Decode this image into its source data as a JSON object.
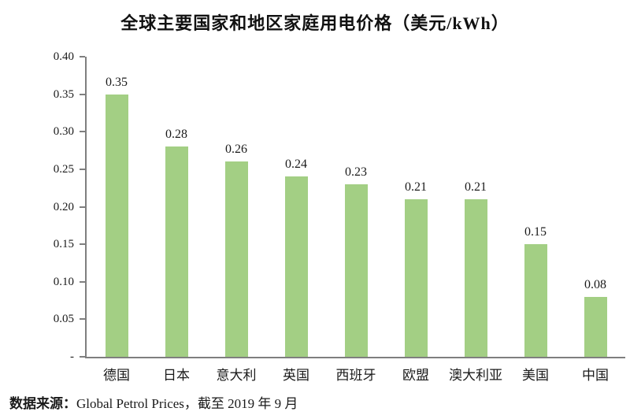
{
  "title": "全球主要国家和地区家庭用电价格（美元/kWh）",
  "source": {
    "label": "数据来源：",
    "text": "Global Petrol Prices，截至 2019 年 9 月"
  },
  "chart_data": {
    "type": "bar",
    "title": "全球主要国家和地区家庭用电价格（美元/kWh）",
    "categories": [
      "德国",
      "日本",
      "意大利",
      "英国",
      "西班牙",
      "欧盟",
      "澳大利亚",
      "美国",
      "中国"
    ],
    "values": [
      0.35,
      0.28,
      0.26,
      0.24,
      0.23,
      0.21,
      0.21,
      0.15,
      0.08
    ],
    "value_labels": [
      "0.35",
      "0.28",
      "0.26",
      "0.24",
      "0.23",
      "0.21",
      "0.21",
      "0.15",
      "0.08"
    ],
    "xlabel": "",
    "ylabel": "",
    "ylim": [
      0,
      0.4
    ],
    "yticks": [
      0.4,
      0.35,
      0.3,
      0.25,
      0.2,
      0.15,
      0.1,
      0.05,
      0
    ],
    "ytick_labels": [
      "0.40",
      "0.35",
      "0.30",
      "0.25",
      "0.20",
      "0.15",
      "0.10",
      "0.05",
      "-"
    ],
    "grid": false,
    "legend": null,
    "bar_color": "#a3cf84",
    "axis_color": "#7f7f7f",
    "text_color": "#1a1a1a"
  }
}
